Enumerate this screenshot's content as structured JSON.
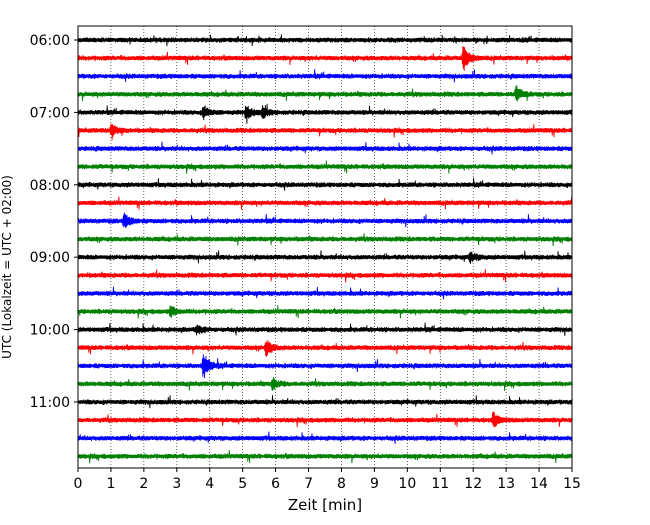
{
  "chart_data": {
    "type": "line",
    "xlabel": "Zeit  [min]",
    "ylabel": "UTC (Lokalzeit = UTC + 02:00)",
    "xlim": [
      0,
      15
    ],
    "x_ticks": [
      0,
      1,
      2,
      3,
      4,
      5,
      6,
      7,
      8,
      9,
      10,
      11,
      12,
      13,
      14,
      15
    ],
    "y_tick_labels": [
      "06:00",
      "07:00",
      "08:00",
      "09:00",
      "10:00",
      "11:00"
    ],
    "rows": 24,
    "row_start": "06:00",
    "row_interval_minutes": 15,
    "grid_x": true,
    "grid_style": "dotted vertical lines at each minute",
    "trace_colors": [
      "#000000",
      "#ff0000",
      "#0000ff",
      "#008000"
    ],
    "events": [
      {
        "row": 1,
        "minute": 11.7,
        "amplitude": 1.0
      },
      {
        "row": 3,
        "minute": 13.3,
        "amplitude": 0.6
      },
      {
        "row": 4,
        "minute": 3.8,
        "amplitude": 0.5
      },
      {
        "row": 4,
        "minute": 5.1,
        "amplitude": 0.55
      },
      {
        "row": 4,
        "minute": 5.6,
        "amplitude": 0.4
      },
      {
        "row": 5,
        "minute": 1.0,
        "amplitude": 0.45
      },
      {
        "row": 10,
        "minute": 1.4,
        "amplitude": 0.6
      },
      {
        "row": 12,
        "minute": 11.9,
        "amplitude": 0.4
      },
      {
        "row": 15,
        "minute": 2.8,
        "amplitude": 0.4
      },
      {
        "row": 16,
        "minute": 3.6,
        "amplitude": 0.35
      },
      {
        "row": 17,
        "minute": 5.7,
        "amplitude": 0.65
      },
      {
        "row": 18,
        "minute": 3.8,
        "amplitude": 1.0
      },
      {
        "row": 19,
        "minute": 5.9,
        "amplitude": 0.45
      },
      {
        "row": 21,
        "minute": 12.6,
        "amplitude": 0.55
      }
    ]
  }
}
